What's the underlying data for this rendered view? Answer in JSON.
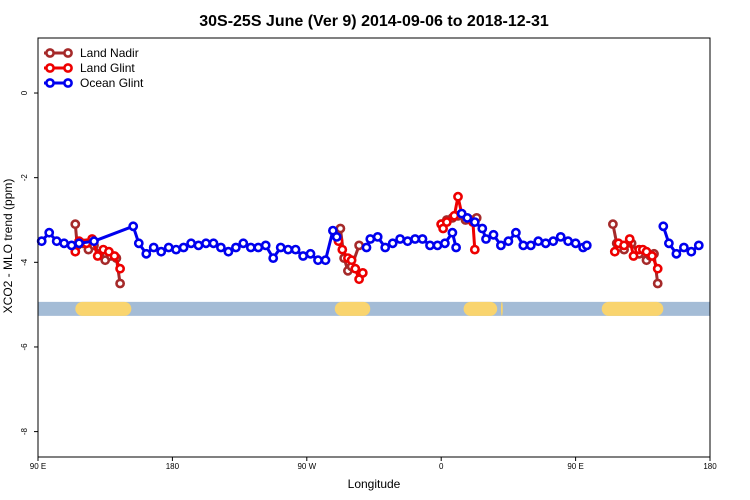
{
  "chart_data": {
    "type": "line",
    "title": "30S-25S June (Ver 9)   2014-09-06 to 2018-12-31",
    "xlabel": "Longitude",
    "ylabel": "XCO2 - MLO trend (ppm)",
    "xlim": [
      90,
      450
    ],
    "ylim": [
      -8.6,
      1.3
    ],
    "x_ticks": [
      {
        "value": 90,
        "label": "90 E"
      },
      {
        "value": 162,
        "label": "180"
      },
      {
        "value": 234,
        "label": "90 W"
      },
      {
        "value": 306,
        "label": "0"
      },
      {
        "value": 378,
        "label": "90 E"
      },
      {
        "value": 450,
        "label": "180"
      }
    ],
    "y_ticks": [
      {
        "value": 0,
        "label": "0"
      },
      {
        "value": -2,
        "label": "-2"
      },
      {
        "value": -4,
        "label": "-4"
      },
      {
        "value": -6,
        "label": "-6"
      },
      {
        "value": -8,
        "label": "-8"
      }
    ],
    "legend_position": "top-left",
    "series": [
      {
        "name": "Land Nadir",
        "color": "#a52a2a",
        "segments": [
          [
            [
              110,
              -3.1
            ],
            [
              111,
              -3.6
            ],
            [
              114,
              -3.55
            ],
            [
              117,
              -3.7
            ],
            [
              120,
              -3.6
            ],
            [
              123,
              -3.8
            ],
            [
              126,
              -3.95
            ],
            [
              129,
              -3.85
            ],
            [
              132,
              -3.9
            ],
            [
              134,
              -4.5
            ]
          ],
          [
            [
              252,
              -3.2
            ],
            [
              254,
              -3.9
            ],
            [
              256,
              -4.2
            ],
            [
              258,
              -4.1
            ],
            [
              262,
              -3.6
            ]
          ],
          [
            [
              306,
              -3.1
            ],
            [
              309,
              -3.0
            ],
            [
              312,
              -2.95
            ],
            [
              315,
              -2.9
            ],
            [
              319,
              -3.0
            ],
            [
              322,
              -3.0
            ],
            [
              325,
              -2.95
            ]
          ],
          [
            [
              398,
              -3.1
            ],
            [
              400,
              -3.55
            ],
            [
              404,
              -3.7
            ],
            [
              408,
              -3.55
            ],
            [
              412,
              -3.8
            ],
            [
              416,
              -3.95
            ],
            [
              418,
              -3.85
            ],
            [
              420,
              -3.8
            ],
            [
              422,
              -4.5
            ]
          ]
        ]
      },
      {
        "name": "Land Glint",
        "color": "#ee0000",
        "segments": [
          [
            [
              110,
              -3.75
            ],
            [
              112,
              -3.5
            ],
            [
              116,
              -3.55
            ],
            [
              119,
              -3.45
            ],
            [
              122,
              -3.85
            ],
            [
              125,
              -3.7
            ],
            [
              128,
              -3.75
            ],
            [
              131,
              -3.85
            ],
            [
              134,
              -4.15
            ]
          ],
          [
            [
              251,
              -3.5
            ],
            [
              253,
              -3.7
            ],
            [
              256,
              -3.9
            ],
            [
              258,
              -3.95
            ],
            [
              260,
              -4.15
            ],
            [
              262,
              -4.4
            ],
            [
              264,
              -4.25
            ]
          ],
          [
            [
              306,
              -3.1
            ],
            [
              307,
              -3.2
            ],
            [
              309,
              -3.05
            ],
            [
              313,
              -2.9
            ],
            [
              315,
              -2.45
            ],
            [
              317,
              -2.85
            ],
            [
              323,
              -3.05
            ],
            [
              324,
              -3.7
            ]
          ],
          [
            [
              399,
              -3.75
            ],
            [
              401,
              -3.55
            ],
            [
              404,
              -3.6
            ],
            [
              407,
              -3.45
            ],
            [
              409,
              -3.85
            ],
            [
              412,
              -3.7
            ],
            [
              414,
              -3.7
            ],
            [
              416,
              -3.75
            ],
            [
              419,
              -3.85
            ],
            [
              422,
              -4.15
            ]
          ]
        ]
      },
      {
        "name": "Ocean Glint",
        "color": "#0000ee",
        "segments": [
          [
            [
              92,
              -3.5
            ],
            [
              96,
              -3.3
            ],
            [
              100,
              -3.5
            ],
            [
              104,
              -3.55
            ],
            [
              108,
              -3.6
            ],
            [
              112,
              -3.55
            ],
            [
              120,
              -3.5
            ],
            [
              141,
              -3.15
            ],
            [
              144,
              -3.55
            ],
            [
              148,
              -3.8
            ],
            [
              152,
              -3.65
            ],
            [
              156,
              -3.75
            ],
            [
              160,
              -3.65
            ],
            [
              164,
              -3.7
            ],
            [
              168,
              -3.65
            ],
            [
              172,
              -3.55
            ],
            [
              176,
              -3.6
            ],
            [
              180,
              -3.55
            ],
            [
              184,
              -3.55
            ],
            [
              188,
              -3.65
            ],
            [
              192,
              -3.75
            ],
            [
              196,
              -3.65
            ],
            [
              200,
              -3.55
            ],
            [
              204,
              -3.65
            ],
            [
              208,
              -3.65
            ],
            [
              212,
              -3.6
            ],
            [
              216,
              -3.9
            ],
            [
              220,
              -3.65
            ],
            [
              224,
              -3.7
            ],
            [
              228,
              -3.7
            ],
            [
              232,
              -3.85
            ],
            [
              236,
              -3.8
            ],
            [
              240,
              -3.95
            ],
            [
              244,
              -3.95
            ],
            [
              248,
              -3.25
            ],
            [
              250,
              -3.4
            ]
          ],
          [
            [
              266,
              -3.65
            ],
            [
              268,
              -3.45
            ],
            [
              272,
              -3.4
            ],
            [
              276,
              -3.65
            ],
            [
              280,
              -3.55
            ],
            [
              284,
              -3.45
            ],
            [
              288,
              -3.5
            ],
            [
              292,
              -3.45
            ],
            [
              296,
              -3.45
            ],
            [
              300,
              -3.6
            ],
            [
              304,
              -3.6
            ],
            [
              308,
              -3.55
            ],
            [
              312,
              -3.3
            ],
            [
              314,
              -3.65
            ]
          ],
          [
            [
              317,
              -2.85
            ],
            [
              320,
              -2.95
            ],
            [
              324,
              -3.05
            ],
            [
              328,
              -3.2
            ],
            [
              330,
              -3.45
            ],
            [
              334,
              -3.35
            ],
            [
              338,
              -3.6
            ],
            [
              342,
              -3.5
            ],
            [
              346,
              -3.3
            ],
            [
              350,
              -3.6
            ],
            [
              354,
              -3.6
            ],
            [
              358,
              -3.5
            ],
            [
              362,
              -3.55
            ],
            [
              366,
              -3.5
            ],
            [
              370,
              -3.4
            ],
            [
              374,
              -3.5
            ],
            [
              378,
              -3.55
            ],
            [
              382,
              -3.65
            ],
            [
              384,
              -3.6
            ]
          ],
          [
            [
              425,
              -3.15
            ],
            [
              428,
              -3.55
            ],
            [
              432,
              -3.8
            ],
            [
              436,
              -3.65
            ],
            [
              440,
              -3.75
            ],
            [
              444,
              -3.6
            ]
          ]
        ]
      }
    ],
    "band": {
      "y": -5.1,
      "ocean_color": "#a4bcd6",
      "land_color": "#f9d46e",
      "land_ranges": [
        [
          110,
          140
        ],
        [
          249,
          268
        ],
        [
          318,
          336
        ],
        [
          338,
          339
        ],
        [
          392,
          425
        ]
      ]
    }
  }
}
